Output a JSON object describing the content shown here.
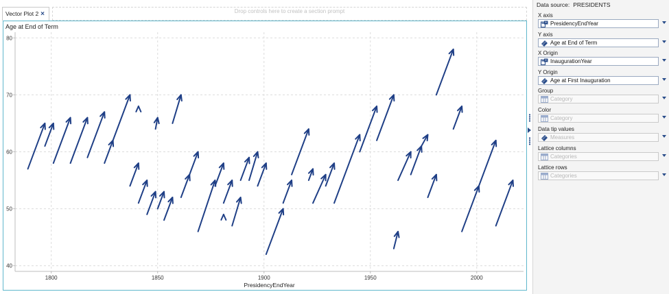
{
  "tab": {
    "label": "Vector Plot 2",
    "close_glyph": "×"
  },
  "drop_zone": {
    "text": "Drop controls here to create a section prompt"
  },
  "plot": {
    "title": "Age at End of Term"
  },
  "chart_data": {
    "type": "vector",
    "title": "Age at End of Term",
    "xlabel": "PresidencyEndYear",
    "ylabel": "",
    "xlim": [
      1783,
      2022
    ],
    "ylim": [
      39,
      81
    ],
    "x_ticks": [
      1800,
      1850,
      1900,
      1950,
      2000
    ],
    "y_ticks": [
      40,
      50,
      60,
      70,
      80
    ],
    "grid": true,
    "color": "#1f3f86",
    "vectors": [
      {
        "x0": 1789,
        "y0": 57,
        "x1": 1797,
        "y1": 65
      },
      {
        "x0": 1797,
        "y0": 61,
        "x1": 1801,
        "y1": 65
      },
      {
        "x0": 1801,
        "y0": 58,
        "x1": 1809,
        "y1": 66
      },
      {
        "x0": 1809,
        "y0": 58,
        "x1": 1817,
        "y1": 66
      },
      {
        "x0": 1817,
        "y0": 59,
        "x1": 1825,
        "y1": 67
      },
      {
        "x0": 1825,
        "y0": 58,
        "x1": 1829,
        "y1": 62
      },
      {
        "x0": 1829,
        "y0": 62,
        "x1": 1837,
        "y1": 70
      },
      {
        "x0": 1837,
        "y0": 54,
        "x1": 1841,
        "y1": 58
      },
      {
        "x0": 1841,
        "y0": 68,
        "x1": 1841,
        "y1": 68
      },
      {
        "x0": 1841,
        "y0": 51,
        "x1": 1845,
        "y1": 55
      },
      {
        "x0": 1845,
        "y0": 49,
        "x1": 1849,
        "y1": 53
      },
      {
        "x0": 1849,
        "y0": 64,
        "x1": 1850,
        "y1": 66
      },
      {
        "x0": 1850,
        "y0": 50,
        "x1": 1853,
        "y1": 53
      },
      {
        "x0": 1853,
        "y0": 48,
        "x1": 1857,
        "y1": 52
      },
      {
        "x0": 1857,
        "y0": 65,
        "x1": 1861,
        "y1": 70
      },
      {
        "x0": 1861,
        "y0": 52,
        "x1": 1865,
        "y1": 56
      },
      {
        "x0": 1865,
        "y0": 56,
        "x1": 1869,
        "y1": 60
      },
      {
        "x0": 1869,
        "y0": 46,
        "x1": 1877,
        "y1": 55
      },
      {
        "x0": 1877,
        "y0": 54,
        "x1": 1881,
        "y1": 58
      },
      {
        "x0": 1881,
        "y0": 49,
        "x1": 1881,
        "y1": 49
      },
      {
        "x0": 1881,
        "y0": 51,
        "x1": 1885,
        "y1": 55
      },
      {
        "x0": 1885,
        "y0": 47,
        "x1": 1889,
        "y1": 52
      },
      {
        "x0": 1889,
        "y0": 55,
        "x1": 1893,
        "y1": 59
      },
      {
        "x0": 1893,
        "y0": 55,
        "x1": 1897,
        "y1": 60
      },
      {
        "x0": 1897,
        "y0": 54,
        "x1": 1901,
        "y1": 58
      },
      {
        "x0": 1901,
        "y0": 42,
        "x1": 1909,
        "y1": 50
      },
      {
        "x0": 1909,
        "y0": 51,
        "x1": 1913,
        "y1": 55
      },
      {
        "x0": 1913,
        "y0": 56,
        "x1": 1921,
        "y1": 64
      },
      {
        "x0": 1921,
        "y0": 55,
        "x1": 1923,
        "y1": 57
      },
      {
        "x0": 1923,
        "y0": 51,
        "x1": 1929,
        "y1": 56
      },
      {
        "x0": 1929,
        "y0": 54,
        "x1": 1933,
        "y1": 58
      },
      {
        "x0": 1933,
        "y0": 51,
        "x1": 1945,
        "y1": 63
      },
      {
        "x0": 1945,
        "y0": 60,
        "x1": 1953,
        "y1": 68
      },
      {
        "x0": 1953,
        "y0": 62,
        "x1": 1961,
        "y1": 70
      },
      {
        "x0": 1961,
        "y0": 43,
        "x1": 1963,
        "y1": 46
      },
      {
        "x0": 1963,
        "y0": 55,
        "x1": 1969,
        "y1": 60
      },
      {
        "x0": 1969,
        "y0": 56,
        "x1": 1974,
        "y1": 61
      },
      {
        "x0": 1974,
        "y0": 61,
        "x1": 1977,
        "y1": 63
      },
      {
        "x0": 1977,
        "y0": 52,
        "x1": 1981,
        "y1": 56
      },
      {
        "x0": 1981,
        "y0": 70,
        "x1": 1989,
        "y1": 78
      },
      {
        "x0": 1989,
        "y0": 64,
        "x1": 1993,
        "y1": 68
      },
      {
        "x0": 1993,
        "y0": 46,
        "x1": 2001,
        "y1": 54
      },
      {
        "x0": 2001,
        "y0": 54,
        "x1": 2009,
        "y1": 62
      },
      {
        "x0": 2009,
        "y0": 47,
        "x1": 2017,
        "y1": 55
      }
    ]
  },
  "panel": {
    "data_source_label": "Data source:",
    "data_source_value": "PRESIDENTS",
    "roles": [
      {
        "label": "X axis",
        "value": "PresidencyEndYear",
        "icon": "calculator-icon",
        "empty": false
      },
      {
        "label": "Y axis",
        "value": "Age at End of Term",
        "icon": "measure-ruler-icon",
        "empty": false
      },
      {
        "label": "X Origin",
        "value": "InaugurationYear",
        "icon": "calculator-icon",
        "empty": false
      },
      {
        "label": "Y Origin",
        "value": "Age at First Inauguration",
        "icon": "measure-ruler-icon",
        "empty": false
      },
      {
        "label": "Group",
        "value": "Category",
        "icon": "category-icon",
        "empty": true
      },
      {
        "label": "Color",
        "value": "Category",
        "icon": "category-icon",
        "empty": true
      },
      {
        "label": "Data tip values",
        "value": "Measures",
        "icon": "measure-ruler-icon",
        "empty": true
      },
      {
        "label": "Lattice columns",
        "value": "Categories",
        "icon": "category-icon",
        "empty": true
      },
      {
        "label": "Lattice rows",
        "value": "Categories",
        "icon": "category-icon",
        "empty": true
      }
    ]
  }
}
